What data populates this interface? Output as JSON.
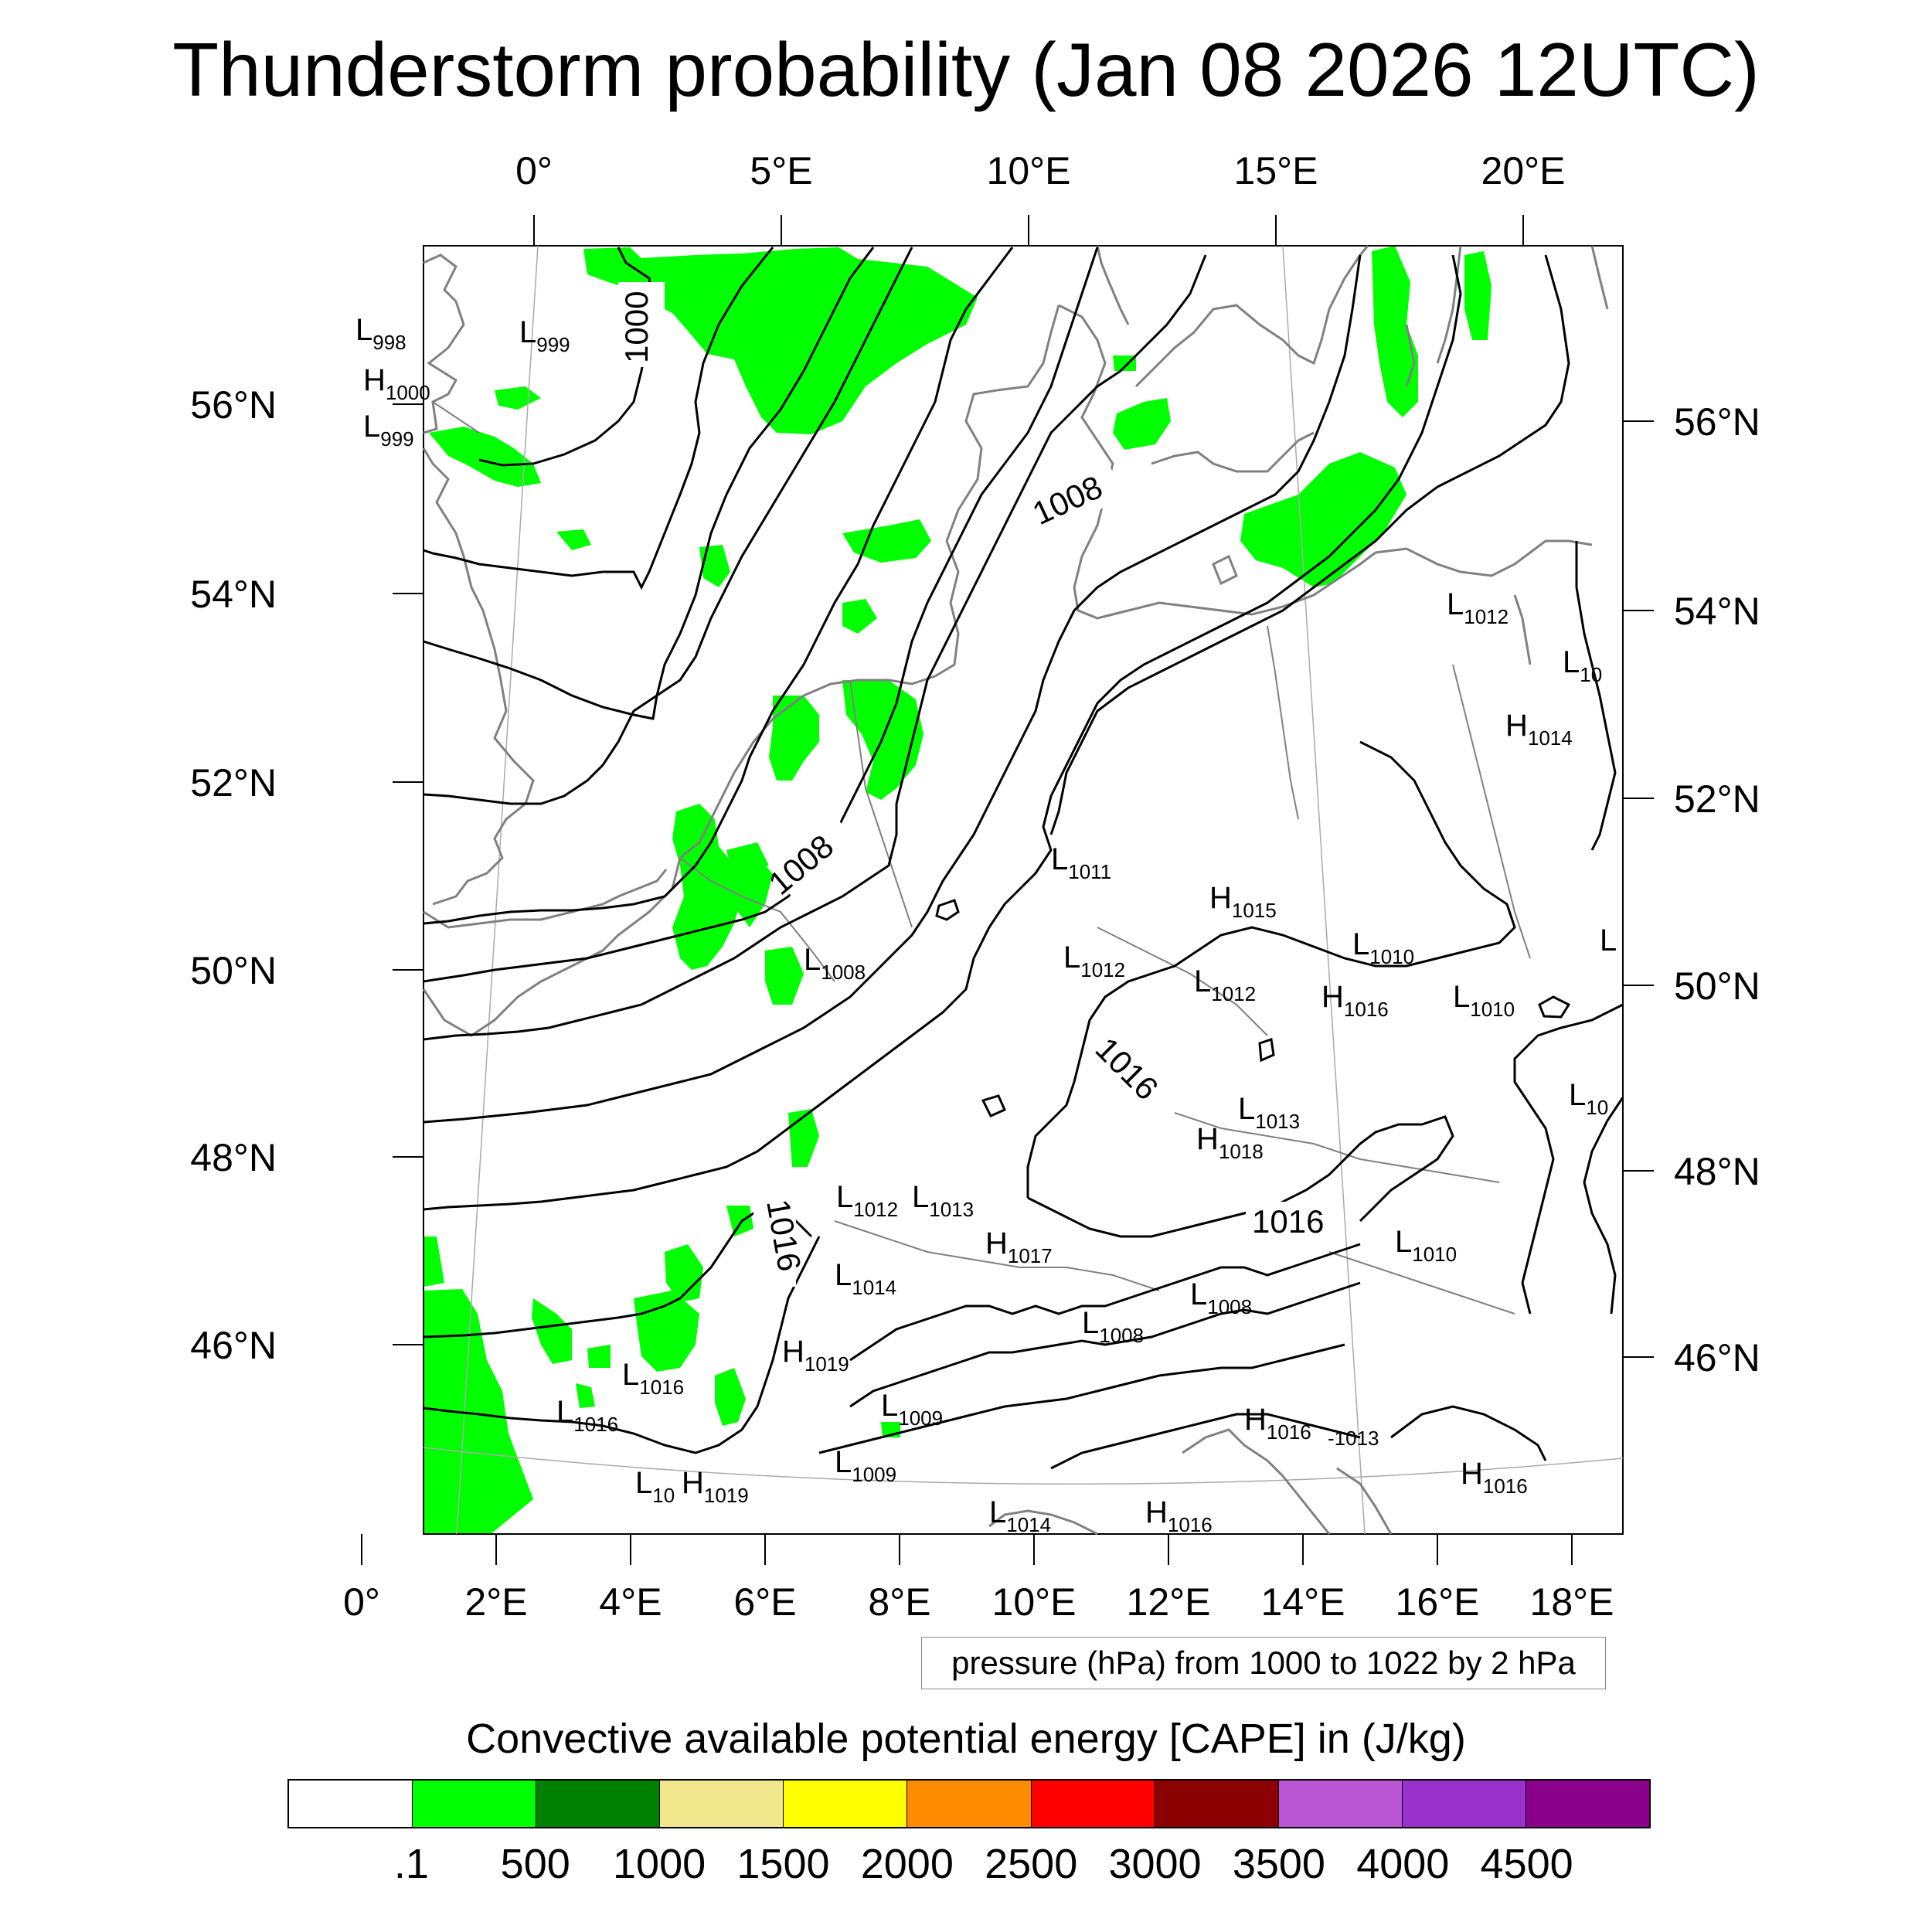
{
  "title": "Thunderstorm probability (Jan 08 2026 12UTC)",
  "top_lon_labels": [
    "0°",
    "5°E",
    "10°E",
    "15°E",
    "20°E"
  ],
  "bottom_lon_labels": [
    "0°",
    "2°E",
    "4°E",
    "6°E",
    "8°E",
    "10°E",
    "12°E",
    "14°E",
    "16°E",
    "18°E"
  ],
  "left_lat_labels": [
    "56°N",
    "54°N",
    "52°N",
    "50°N",
    "48°N",
    "46°N"
  ],
  "right_lat_labels": [
    "56°N",
    "54°N",
    "52°N",
    "50°N",
    "48°N",
    "46°N"
  ],
  "pressure_systems": [
    {
      "type": "L",
      "value": "998"
    },
    {
      "type": "H",
      "value": "1000"
    },
    {
      "type": "L",
      "value": "999"
    },
    {
      "type": "L",
      "value": "999"
    },
    {
      "type": "L",
      "value": "1012"
    },
    {
      "type": "L",
      "value": "10"
    },
    {
      "type": "H",
      "value": "1014"
    },
    {
      "type": "L",
      "value": "1011"
    },
    {
      "type": "H",
      "value": "1015"
    },
    {
      "type": "L",
      "value": "1008"
    },
    {
      "type": "L",
      "value": "1012"
    },
    {
      "type": "L",
      "value": "1012"
    },
    {
      "type": "L",
      "value": "1010"
    },
    {
      "type": "H",
      "value": "1016"
    },
    {
      "type": "L",
      "value": "1010"
    },
    {
      "type": "L",
      "value": ""
    },
    {
      "type": "L",
      "value": "1013"
    },
    {
      "type": "H",
      "value": "1018"
    },
    {
      "type": "L",
      "value": "10"
    },
    {
      "type": "L",
      "value": "1012"
    },
    {
      "type": "L",
      "value": "1013"
    },
    {
      "type": "H",
      "value": "1017"
    },
    {
      "type": "L",
      "value": "1010"
    },
    {
      "type": "L",
      "value": "1014"
    },
    {
      "type": "L",
      "value": "1008"
    },
    {
      "type": "L",
      "value": "1008"
    },
    {
      "type": "H",
      "value": "1019"
    },
    {
      "type": "L",
      "value": "1016"
    },
    {
      "type": "L",
      "value": "1016"
    },
    {
      "type": "L",
      "value": "1009"
    },
    {
      "type": "H",
      "value": "1016"
    },
    {
      "type": "L",
      "value": "1009"
    },
    {
      "type": "L",
      "value": "10"
    },
    {
      "type": "H",
      "value": "1019"
    },
    {
      "type": "L",
      "value": "1014"
    },
    {
      "type": "H",
      "value": "1016"
    },
    {
      "type": "H",
      "value": "1016"
    }
  ],
  "extra_labels": [
    "-1013"
  ],
  "contour_labels": [
    "1000",
    "1008",
    "1008",
    "1016",
    "1016",
    "1016"
  ],
  "pressure_note": "pressure (hPa) from 1000 to 1022 by 2 hPa",
  "cape_title": "Convective available potential energy [CAPE] in (J/kg)",
  "colorbar": {
    "colors": [
      "#ffffff",
      "#00ff00",
      "#008000",
      "#f0e68c",
      "#ffff00",
      "#ff8c00",
      "#ff0000",
      "#8b0000",
      "#ba55d3",
      "#9932cc",
      "#8b008b"
    ],
    "labels": [
      ".1",
      "500",
      "1000",
      "1500",
      "2000",
      "2500",
      "3000",
      "3500",
      "4000",
      "4500"
    ]
  }
}
